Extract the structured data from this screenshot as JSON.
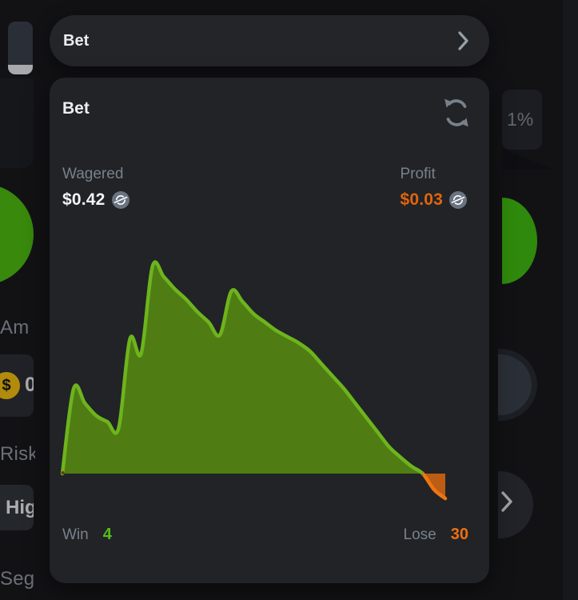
{
  "background": {
    "tooltip_value": "1%",
    "amount_label": "Am",
    "amount_value": "0",
    "coin_symbol": "$",
    "risk_label": "Risk",
    "high_button_label": "Hig",
    "segments_label": "Seg"
  },
  "overlay": {
    "bet_row_label": "Bet",
    "panel": {
      "title": "Bet",
      "wagered_label": "Wagered",
      "wagered_value": "$0.42",
      "profit_label": "Profit",
      "profit_value": "$0.03",
      "win_label": "Win",
      "win_value": "4",
      "lose_label": "Lose",
      "lose_value": "30"
    }
  },
  "colors": {
    "profit_orange": "#e2650c",
    "win_green": "#55bd17",
    "lose_orange": "#ee7010",
    "accent_yellow": "#fdc40d",
    "wheel_green": "#46c20e"
  },
  "chart_data": {
    "type": "area",
    "x": "bet index",
    "x_range": [
      0,
      34
    ],
    "baseline": 0,
    "units": "relative cumulative profit (peak win = 1, end of session below zero)",
    "values": [
      0,
      0.41,
      0.34,
      0.28,
      0.25,
      0.22,
      0.65,
      0.58,
      1,
      0.95,
      0.89,
      0.84,
      0.78,
      0.73,
      0.67,
      0.88,
      0.83,
      0.77,
      0.73,
      0.69,
      0.66,
      0.63,
      0.59,
      0.53,
      0.47,
      0.41,
      0.34,
      0.27,
      0.2,
      0.13,
      0.08,
      0.035,
      0,
      -0.077,
      -0.12
    ],
    "positive_stroke": "#6db41d",
    "positive_fill": "#4f7d13",
    "negative_stroke": "#ee7611",
    "negative_fill": "#bd5c13",
    "legend": [
      "Win 4",
      "Lose 30"
    ]
  }
}
